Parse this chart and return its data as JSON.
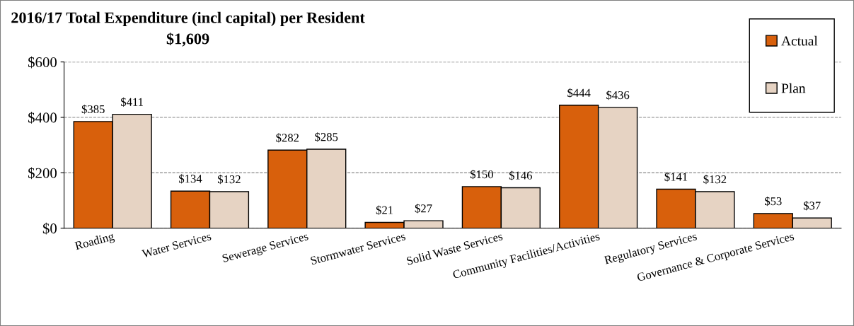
{
  "chart_data": {
    "type": "bar",
    "title": "2016/17 Total Expenditure (incl capital) per Resident",
    "subtitle": "$1,609",
    "categories": [
      "Roading",
      "Water Services",
      "Sewerage Services",
      "Stormwater Services",
      "Solid Waste Services",
      "Community Facilities/Activities",
      "Regulatory Services",
      "Governance & Corporate Services"
    ],
    "series": [
      {
        "name": "Actual",
        "color": "#d8600c",
        "values": [
          385,
          134,
          282,
          21,
          150,
          444,
          141,
          53
        ],
        "value_labels": [
          "$385",
          "$134",
          "$282",
          "$21",
          "$150",
          "$444",
          "$141",
          "$53"
        ]
      },
      {
        "name": "Plan",
        "color": "#e6d3c3",
        "values": [
          411,
          132,
          285,
          27,
          146,
          436,
          132,
          37
        ],
        "value_labels": [
          "$411",
          "$132",
          "$285",
          "$27",
          "$146",
          "$436",
          "$132",
          "$37"
        ]
      }
    ],
    "ylim": [
      0,
      600
    ],
    "yticks": [
      {
        "value": 0,
        "label": "$0"
      },
      {
        "value": 200,
        "label": "$200"
      },
      {
        "value": 400,
        "label": "$400"
      },
      {
        "value": 600,
        "label": "$600"
      }
    ],
    "grid": "y",
    "legend": "top right"
  }
}
